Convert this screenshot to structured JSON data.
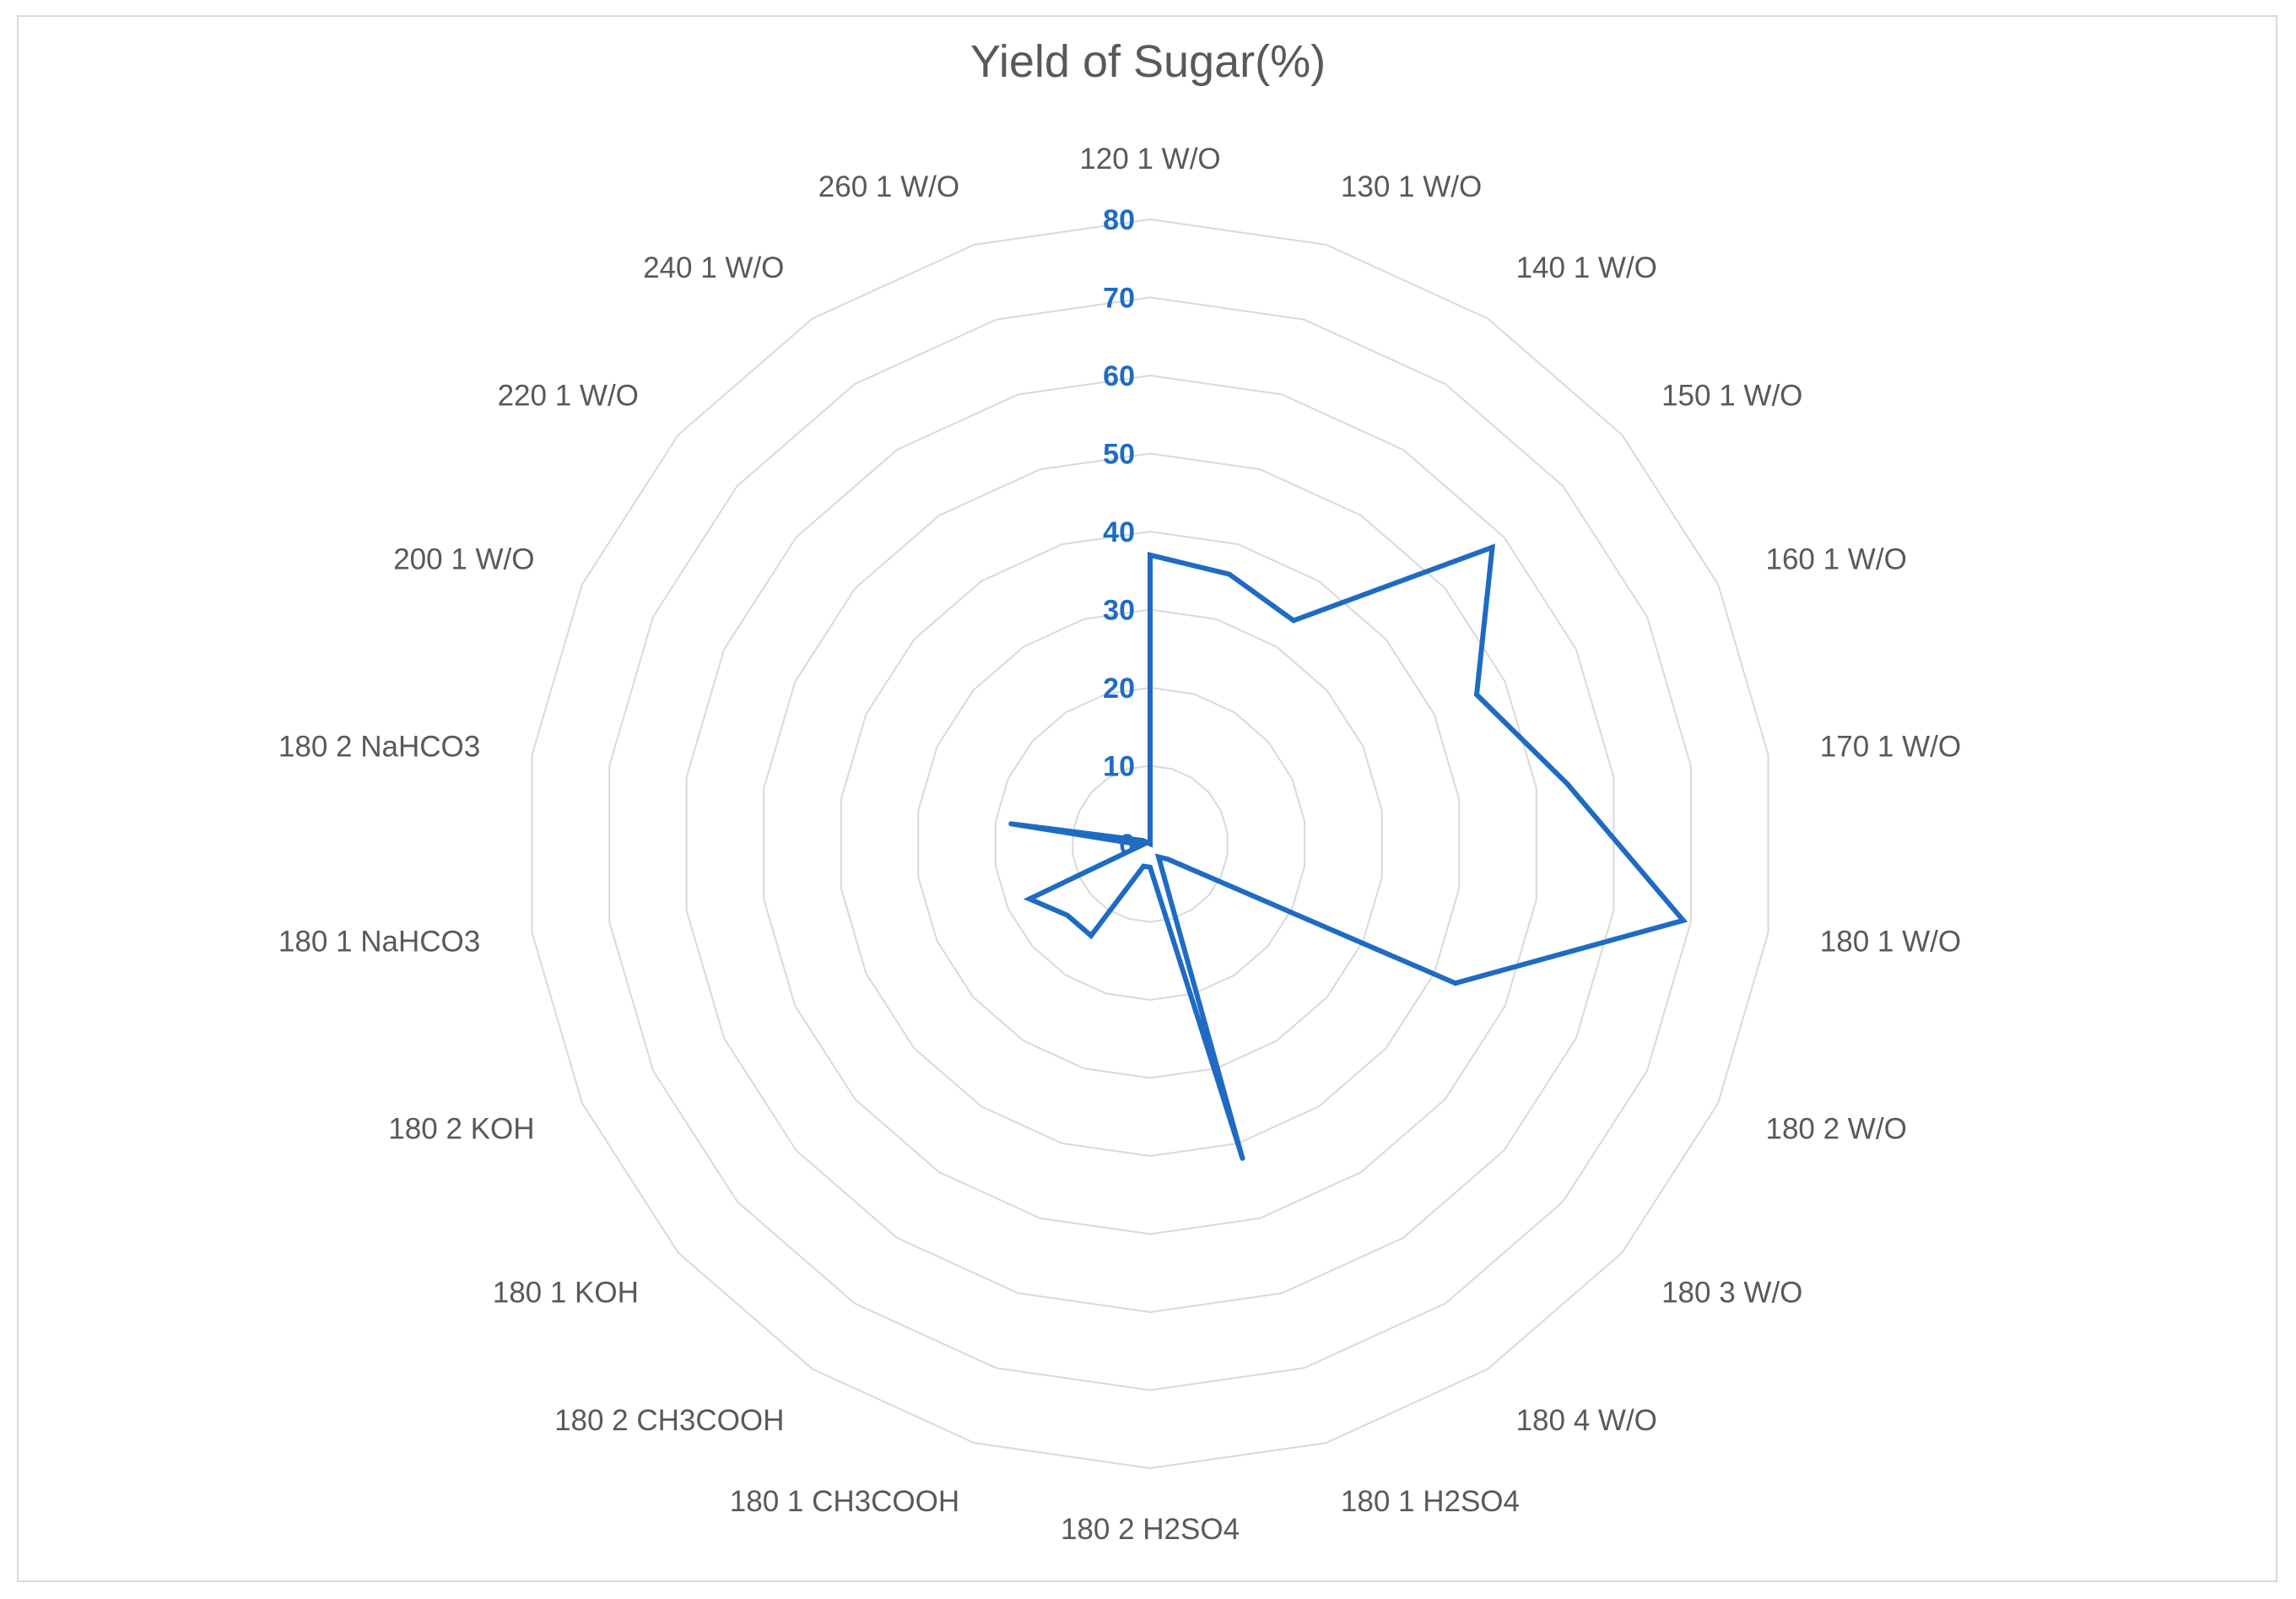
{
  "chart_data": {
    "type": "radar",
    "title": "Yield of Sugar(%)",
    "categories": [
      "120 1 W/O",
      "130 1 W/O",
      "140 1 W/O",
      "150 1 W/O",
      "160 1 W/O",
      "170 1 W/O",
      "180 1 W/O",
      "180 2 W/O",
      "180 3 W/O",
      "180 4 W/O",
      "180 1 H2SO4",
      "180 2 H2SO4",
      "180 1 CH3COOH",
      "180 2 CH3COOH",
      "180 1 KOH",
      "180 2 KOH",
      "180 1 NaHCO3",
      "180 2 NaHCO3",
      "200 1 W/O",
      "220 1 W/O",
      "240 1 W/O",
      "260 1 W/O"
    ],
    "series": [
      {
        "values": [
          37,
          36,
          34,
          58,
          46,
          54,
          69,
          43,
          3,
          2,
          42,
          3,
          3,
          14,
          14,
          17,
          1,
          18,
          1,
          0,
          0,
          0
        ]
      }
    ],
    "radial_ticks": [
      "0",
      "10",
      "20",
      "30",
      "40",
      "50",
      "60",
      "70",
      "80"
    ],
    "rlim": [
      0,
      80
    ],
    "grid": true,
    "legend": "none",
    "colors": {
      "series": "#1f6bc4",
      "grid": "#d9d9d9",
      "labels": "#595959",
      "ticks": "#1f6bc4"
    }
  }
}
